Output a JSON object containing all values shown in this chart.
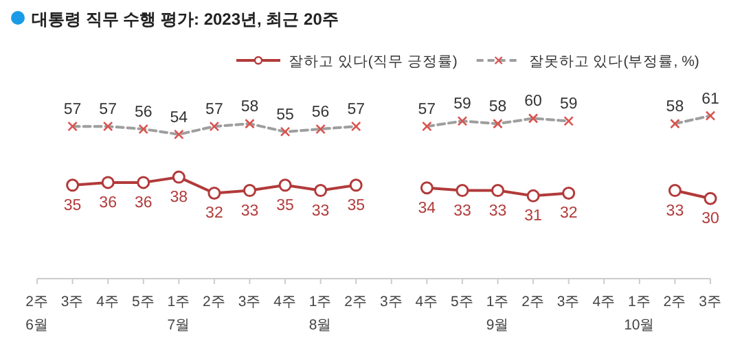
{
  "chart_data": {
    "type": "line",
    "title": "대통령 직무 수행 평가: 2023년, 최근 20주",
    "categories": [
      "2주\n6월",
      "3주",
      "4주",
      "5주",
      "1주\n7월",
      "2주",
      "3주",
      "4주",
      "1주\n8월",
      "2주",
      "3주",
      "4주",
      "5주",
      "1주\n9월",
      "2주",
      "3주",
      "4주",
      "1주\n10월",
      "2주",
      "3주"
    ],
    "series": [
      {
        "name": "잘하고 있다(직무 긍정률)",
        "color": "#b23a3a",
        "marker": "circle",
        "line_style": "solid",
        "values": [
          null,
          35,
          36,
          36,
          38,
          32,
          33,
          35,
          33,
          35,
          null,
          34,
          33,
          33,
          31,
          32,
          null,
          null,
          33,
          30
        ]
      },
      {
        "name": "잘못하고 있다(부정률, %)",
        "color": "#9e9e9e",
        "marker": "cross",
        "line_style": "dashed",
        "values": [
          null,
          57,
          57,
          56,
          54,
          57,
          58,
          55,
          56,
          57,
          null,
          57,
          59,
          58,
          60,
          59,
          null,
          null,
          58,
          61
        ]
      }
    ],
    "data_labels": true,
    "legend": "top right",
    "grid": false
  }
}
